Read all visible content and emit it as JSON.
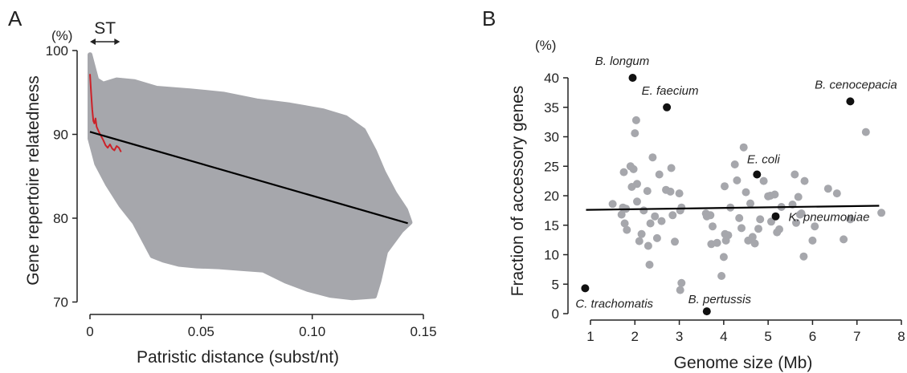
{
  "panel_letters": [
    "A",
    "B"
  ],
  "chart_data": [
    {
      "type": "scatter",
      "panel": "A",
      "xlabel": "Patristic distance (subst/nt)",
      "ylabel": "Gene repertoire relatedness",
      "yunit": "(%)",
      "xlim": [
        -0.005,
        0.15
      ],
      "ylim": [
        69,
        100
      ],
      "xticks": [
        0,
        0.05,
        0.1,
        0.15
      ],
      "xtick_labels": [
        "0",
        "0.05",
        "0.10",
        "0.15"
      ],
      "yticks": [
        70,
        80,
        90,
        100
      ],
      "ytick_labels": [
        "70",
        "80",
        "90",
        "100"
      ],
      "cloud_color": "#a6a7ac",
      "cloud_outline": [
        [
          0.0,
          99.5
        ],
        [
          0.003,
          96.5
        ],
        [
          0.006,
          96.0
        ],
        [
          0.012,
          96.5
        ],
        [
          0.02,
          96.3
        ],
        [
          0.03,
          95.5
        ],
        [
          0.045,
          95.2
        ],
        [
          0.06,
          94.8
        ],
        [
          0.075,
          94.0
        ],
        [
          0.09,
          93.5
        ],
        [
          0.105,
          92.8
        ],
        [
          0.115,
          92.0
        ],
        [
          0.123,
          90.5
        ],
        [
          0.128,
          88.0
        ],
        [
          0.132,
          85.5
        ],
        [
          0.137,
          83.0
        ],
        [
          0.142,
          81.0
        ],
        [
          0.144,
          79.5
        ],
        [
          0.14,
          78.5
        ],
        [
          0.133,
          76.0
        ],
        [
          0.13,
          72.5
        ],
        [
          0.128,
          70.7
        ],
        [
          0.118,
          70.5
        ],
        [
          0.108,
          70.8
        ],
        [
          0.098,
          71.5
        ],
        [
          0.088,
          72.5
        ],
        [
          0.078,
          73.8
        ],
        [
          0.068,
          74.0
        ],
        [
          0.058,
          74.2
        ],
        [
          0.048,
          74.3
        ],
        [
          0.04,
          74.5
        ],
        [
          0.033,
          75.0
        ],
        [
          0.028,
          75.5
        ],
        [
          0.025,
          77.0
        ],
        [
          0.02,
          79.5
        ],
        [
          0.014,
          81.5
        ],
        [
          0.008,
          84.0
        ],
        [
          0.003,
          86.5
        ],
        [
          0.0,
          89.5
        ]
      ],
      "fit_line": {
        "x": [
          0.0,
          0.143
        ],
        "y": [
          90.3,
          79.4
        ],
        "color": "#000000"
      },
      "st_curve": {
        "color": "#cc2229",
        "x": [
          0.0,
          0.0005,
          0.001,
          0.0015,
          0.002,
          0.0025,
          0.003,
          0.004,
          0.005,
          0.006,
          0.007,
          0.008,
          0.009,
          0.01,
          0.011,
          0.012,
          0.013,
          0.014
        ],
        "y": [
          97.2,
          95.0,
          93.0,
          91.6,
          91.3,
          91.9,
          90.9,
          90.3,
          89.8,
          89.3,
          88.7,
          88.4,
          88.8,
          88.3,
          88.1,
          88.6,
          88.4,
          87.9
        ]
      },
      "annotations": [
        {
          "text": "ST",
          "x_range": [
            0.0,
            0.0135
          ]
        }
      ]
    },
    {
      "type": "scatter",
      "panel": "B",
      "xlabel": "Genome size (Mb)",
      "ylabel": "Fraction of accessory genes",
      "yunit": "(%)",
      "xlim": [
        0.6,
        8
      ],
      "ylim": [
        0,
        44
      ],
      "xticks": [
        1,
        2,
        3,
        4,
        5,
        6,
        7,
        8
      ],
      "xtick_labels": [
        "1",
        "2",
        "3",
        "4",
        "5",
        "6",
        "7",
        "8"
      ],
      "yticks": [
        0,
        5,
        10,
        15,
        20,
        25,
        30,
        35,
        40
      ],
      "ytick_labels": [
        "0",
        "5",
        "10",
        "15",
        "20",
        "25",
        "30",
        "35",
        "40"
      ],
      "point_color": "#a6a7ac",
      "highlight_color": "#111111",
      "points": [
        [
          1.5,
          18.6
        ],
        [
          1.7,
          16.8
        ],
        [
          1.73,
          18.0
        ],
        [
          1.75,
          24.0
        ],
        [
          1.77,
          15.3
        ],
        [
          1.8,
          17.8
        ],
        [
          1.82,
          14.2
        ],
        [
          1.9,
          25.0
        ],
        [
          1.93,
          21.5
        ],
        [
          1.97,
          24.5
        ],
        [
          2.0,
          30.6
        ],
        [
          2.03,
          32.8
        ],
        [
          2.05,
          22.0
        ],
        [
          2.05,
          19.0
        ],
        [
          2.1,
          12.3
        ],
        [
          2.15,
          13.5
        ],
        [
          2.2,
          17.5
        ],
        [
          2.28,
          20.8
        ],
        [
          2.3,
          11.5
        ],
        [
          2.33,
          8.3
        ],
        [
          2.35,
          15.3
        ],
        [
          2.4,
          26.5
        ],
        [
          2.45,
          16.5
        ],
        [
          2.5,
          12.8
        ],
        [
          2.55,
          23.6
        ],
        [
          2.6,
          15.7
        ],
        [
          2.7,
          21.0
        ],
        [
          2.8,
          20.7
        ],
        [
          2.82,
          24.7
        ],
        [
          2.85,
          16.7
        ],
        [
          2.9,
          12.2
        ],
        [
          3.0,
          20.4
        ],
        [
          3.02,
          17.5
        ],
        [
          3.05,
          18.0
        ],
        [
          3.05,
          5.2
        ],
        [
          3.02,
          4.0
        ],
        [
          3.6,
          17.0
        ],
        [
          3.62,
          16.5
        ],
        [
          3.7,
          16.7
        ],
        [
          3.72,
          11.8
        ],
        [
          3.75,
          14.8
        ],
        [
          3.85,
          12.0
        ],
        [
          3.95,
          6.4
        ],
        [
          4.0,
          9.6
        ],
        [
          4.03,
          13.5
        ],
        [
          4.02,
          21.6
        ],
        [
          4.05,
          12.4
        ],
        [
          4.1,
          13.3
        ],
        [
          4.15,
          18.0
        ],
        [
          4.25,
          25.3
        ],
        [
          4.3,
          22.6
        ],
        [
          4.35,
          16.2
        ],
        [
          4.4,
          14.5
        ],
        [
          4.45,
          28.2
        ],
        [
          4.5,
          20.6
        ],
        [
          4.55,
          12.4
        ],
        [
          4.6,
          18.7
        ],
        [
          4.65,
          13.0
        ],
        [
          4.7,
          11.9
        ],
        [
          4.78,
          14.4
        ],
        [
          4.82,
          16.0
        ],
        [
          4.9,
          22.5
        ],
        [
          5.0,
          19.9
        ],
        [
          5.05,
          20.0
        ],
        [
          5.07,
          15.6
        ],
        [
          5.15,
          20.2
        ],
        [
          5.2,
          13.8
        ],
        [
          5.25,
          14.3
        ],
        [
          5.3,
          18.1
        ],
        [
          5.55,
          18.5
        ],
        [
          5.6,
          23.6
        ],
        [
          5.63,
          15.4
        ],
        [
          5.68,
          19.8
        ],
        [
          5.72,
          16.8
        ],
        [
          5.75,
          17.0
        ],
        [
          5.8,
          9.7
        ],
        [
          5.82,
          22.5
        ],
        [
          6.0,
          12.4
        ],
        [
          6.05,
          14.8
        ],
        [
          6.35,
          21.2
        ],
        [
          6.55,
          20.4
        ],
        [
          6.7,
          12.6
        ],
        [
          6.85,
          16.0
        ],
        [
          7.2,
          30.8
        ],
        [
          7.55,
          17.1
        ]
      ],
      "highlighted": [
        {
          "name": "B. longum",
          "x": 1.95,
          "y": 40.0
        },
        {
          "name": "E. faecium",
          "x": 2.72,
          "y": 35.0
        },
        {
          "name": "B. cenocepacia",
          "x": 6.85,
          "y": 36.0
        },
        {
          "name": "E. coli",
          "x": 4.75,
          "y": 23.6
        },
        {
          "name": "K. pneumoniae",
          "x": 5.17,
          "y": 16.5
        },
        {
          "name": "C. trachomatis",
          "x": 0.88,
          "y": 4.3
        },
        {
          "name": "B. pertussis",
          "x": 3.62,
          "y": 0.4
        }
      ],
      "fit_line": {
        "x": [
          0.9,
          7.5
        ],
        "y": [
          17.6,
          18.3
        ],
        "color": "#000000"
      }
    }
  ]
}
